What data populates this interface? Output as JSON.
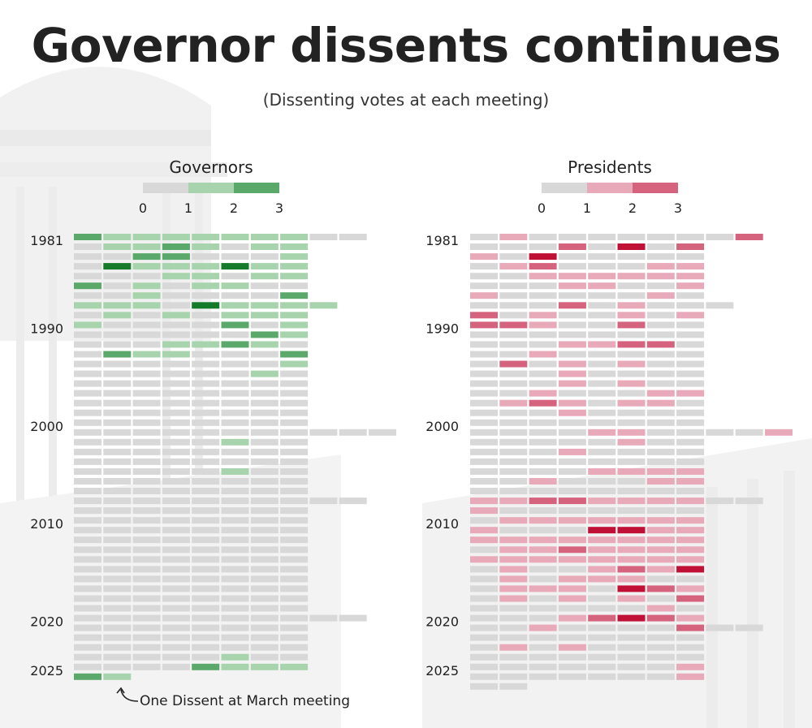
{
  "title": "Governor dissents continues",
  "subtitle": "(Dissenting votes at each meeting)",
  "annotation": "One Dissent at March meeting",
  "colors": {
    "empty": "#d8d8d8",
    "governors": [
      "#d8d8d8",
      "#a8d4ad",
      "#5aa86a",
      "#157a2a"
    ],
    "presidents": [
      "#d8d8d8",
      "#e8a9b8",
      "#d6637e",
      "#c01035"
    ]
  },
  "chart_data": [
    {
      "type": "heatmap",
      "title": "Governors",
      "legend": {
        "labels": [
          "0",
          "1",
          "2",
          "3"
        ],
        "position": "top"
      },
      "year_labels": [
        {
          "year": "1981",
          "row": 0
        },
        {
          "year": "1990",
          "row": 9
        },
        {
          "year": "2000",
          "row": 19
        },
        {
          "year": "2010",
          "row": 29
        },
        {
          "year": "2020",
          "row": 39
        },
        {
          "year": "2025",
          "row": 44
        }
      ],
      "rows": [
        [
          2,
          1,
          1,
          1,
          1,
          1,
          1,
          1,
          0,
          0
        ],
        [
          0,
          1,
          1,
          2,
          1,
          0,
          1,
          1
        ],
        [
          0,
          0,
          2,
          2,
          0,
          0,
          0,
          1
        ],
        [
          0,
          3,
          1,
          1,
          1,
          3,
          1,
          1
        ],
        [
          0,
          0,
          0,
          1,
          1,
          0,
          1,
          1
        ],
        [
          2,
          0,
          1,
          0,
          1,
          1,
          0,
          0
        ],
        [
          0,
          0,
          1,
          0,
          0,
          0,
          0,
          2
        ],
        [
          1,
          1,
          1,
          0,
          3,
          1,
          1,
          1,
          1
        ],
        [
          0,
          1,
          0,
          1,
          0,
          1,
          1,
          1
        ],
        [
          1,
          0,
          0,
          0,
          0,
          2,
          0,
          1
        ],
        [
          0,
          0,
          0,
          0,
          0,
          0,
          2,
          1
        ],
        [
          0,
          0,
          0,
          1,
          1,
          2,
          1,
          0
        ],
        [
          0,
          2,
          1,
          1,
          0,
          0,
          0,
          2
        ],
        [
          0,
          0,
          0,
          0,
          0,
          0,
          0,
          1
        ],
        [
          0,
          0,
          0,
          0,
          0,
          0,
          1,
          0
        ],
        [
          0,
          0,
          0,
          0,
          0,
          0,
          0,
          0
        ],
        [
          0,
          0,
          0,
          0,
          0,
          0,
          0,
          0
        ],
        [
          0,
          0,
          0,
          0,
          0,
          0,
          0,
          0
        ],
        [
          0,
          0,
          0,
          0,
          0,
          0,
          0,
          0
        ],
        [
          0,
          0,
          0,
          0,
          0,
          0,
          0,
          0
        ],
        [
          0,
          0,
          0,
          0,
          0,
          0,
          0,
          0,
          0,
          0,
          0
        ],
        [
          0,
          0,
          0,
          0,
          0,
          1,
          0,
          0
        ],
        [
          0,
          0,
          0,
          0,
          0,
          0,
          0,
          0
        ],
        [
          0,
          0,
          0,
          0,
          0,
          0,
          0,
          0
        ],
        [
          0,
          0,
          0,
          0,
          0,
          1,
          0,
          0
        ],
        [
          0,
          0,
          0,
          0,
          0,
          0,
          0,
          0
        ],
        [
          0,
          0,
          0,
          0,
          0,
          0,
          0,
          0
        ],
        [
          0,
          0,
          0,
          0,
          0,
          0,
          0,
          0,
          0,
          0
        ],
        [
          0,
          0,
          0,
          0,
          0,
          0,
          0,
          0
        ],
        [
          0,
          0,
          0,
          0,
          0,
          0,
          0,
          0
        ],
        [
          0,
          0,
          0,
          0,
          0,
          0,
          0,
          0
        ],
        [
          0,
          0,
          0,
          0,
          0,
          0,
          0,
          0
        ],
        [
          0,
          0,
          0,
          0,
          0,
          0,
          0,
          0
        ],
        [
          0,
          0,
          0,
          0,
          0,
          0,
          0,
          0
        ],
        [
          0,
          0,
          0,
          0,
          0,
          0,
          0,
          0
        ],
        [
          0,
          0,
          0,
          0,
          0,
          0,
          0,
          0
        ],
        [
          0,
          0,
          0,
          0,
          0,
          0,
          0,
          0
        ],
        [
          0,
          0,
          0,
          0,
          0,
          0,
          0,
          0
        ],
        [
          0,
          0,
          0,
          0,
          0,
          0,
          0,
          0
        ],
        [
          0,
          0,
          0,
          0,
          0,
          0,
          0,
          0,
          0,
          0
        ],
        [
          0,
          0,
          0,
          0,
          0,
          0,
          0,
          0
        ],
        [
          0,
          0,
          0,
          0,
          0,
          0,
          0,
          0
        ],
        [
          0,
          0,
          0,
          0,
          0,
          0,
          0,
          0
        ],
        [
          0,
          0,
          0,
          0,
          0,
          1,
          0,
          0
        ],
        [
          0,
          0,
          0,
          0,
          2,
          1,
          1,
          1
        ],
        [
          2,
          1
        ]
      ]
    },
    {
      "type": "heatmap",
      "title": "Presidents",
      "legend": {
        "labels": [
          "0",
          "1",
          "2",
          "3"
        ],
        "position": "top"
      },
      "year_labels": [
        {
          "year": "1981",
          "row": 0
        },
        {
          "year": "1990",
          "row": 9
        },
        {
          "year": "2000",
          "row": 19
        },
        {
          "year": "2010",
          "row": 29
        },
        {
          "year": "2020",
          "row": 39
        },
        {
          "year": "2025",
          "row": 44
        }
      ],
      "rows": [
        [
          0,
          1,
          0,
          0,
          0,
          0,
          0,
          0,
          0,
          2
        ],
        [
          0,
          0,
          0,
          2,
          0,
          3,
          0,
          2
        ],
        [
          1,
          0,
          3,
          0,
          0,
          0,
          0,
          0
        ],
        [
          0,
          1,
          2,
          0,
          0,
          0,
          1,
          1
        ],
        [
          0,
          0,
          1,
          1,
          1,
          1,
          1,
          1
        ],
        [
          0,
          0,
          0,
          1,
          1,
          0,
          0,
          1
        ],
        [
          1,
          0,
          0,
          0,
          0,
          0,
          1,
          0
        ],
        [
          0,
          0,
          0,
          2,
          0,
          1,
          0,
          0,
          0
        ],
        [
          2,
          0,
          1,
          0,
          0,
          1,
          0,
          1
        ],
        [
          2,
          2,
          1,
          0,
          0,
          2,
          0,
          0
        ],
        [
          0,
          0,
          0,
          0,
          0,
          0,
          0,
          0
        ],
        [
          0,
          0,
          0,
          1,
          1,
          2,
          2,
          0
        ],
        [
          0,
          0,
          1,
          0,
          0,
          0,
          0,
          0
        ],
        [
          0,
          2,
          0,
          1,
          0,
          1,
          0,
          0
        ],
        [
          0,
          0,
          0,
          1,
          0,
          0,
          0,
          0
        ],
        [
          0,
          0,
          0,
          1,
          0,
          1,
          0,
          0
        ],
        [
          0,
          0,
          1,
          0,
          0,
          0,
          1,
          1
        ],
        [
          0,
          1,
          2,
          1,
          0,
          1,
          1,
          0
        ],
        [
          0,
          0,
          0,
          1,
          0,
          0,
          0,
          0
        ],
        [
          0,
          0,
          0,
          0,
          0,
          0,
          0,
          0
        ],
        [
          0,
          0,
          0,
          0,
          1,
          1,
          0,
          0,
          0,
          0,
          1
        ],
        [
          0,
          0,
          0,
          0,
          0,
          1,
          0,
          0
        ],
        [
          0,
          0,
          0,
          1,
          0,
          0,
          0,
          0
        ],
        [
          0,
          0,
          0,
          0,
          0,
          0,
          0,
          0
        ],
        [
          0,
          0,
          0,
          0,
          1,
          1,
          1,
          1
        ],
        [
          0,
          0,
          1,
          0,
          0,
          0,
          1,
          1
        ],
        [
          0,
          0,
          0,
          0,
          0,
          0,
          0,
          0
        ],
        [
          1,
          1,
          2,
          2,
          1,
          1,
          1,
          1,
          0,
          0
        ],
        [
          1,
          0,
          0,
          0,
          0,
          0,
          0,
          0
        ],
        [
          0,
          1,
          1,
          1,
          1,
          1,
          1,
          1
        ],
        [
          1,
          0,
          0,
          0,
          3,
          3,
          1,
          1
        ],
        [
          1,
          1,
          1,
          1,
          1,
          1,
          1,
          1
        ],
        [
          0,
          1,
          1,
          2,
          1,
          1,
          1,
          1
        ],
        [
          1,
          1,
          1,
          1,
          1,
          1,
          1,
          1
        ],
        [
          0,
          1,
          0,
          0,
          1,
          2,
          1,
          3
        ],
        [
          0,
          1,
          0,
          1,
          1,
          1,
          0,
          0
        ],
        [
          0,
          1,
          1,
          1,
          0,
          3,
          2,
          1
        ],
        [
          0,
          1,
          0,
          1,
          0,
          1,
          0,
          2
        ],
        [
          0,
          0,
          0,
          0,
          0,
          0,
          1,
          0
        ],
        [
          0,
          0,
          0,
          1,
          2,
          3,
          2,
          1
        ],
        [
          0,
          0,
          1,
          0,
          0,
          0,
          0,
          2,
          0,
          0
        ],
        [
          0,
          0,
          0,
          0,
          0,
          0,
          0,
          0
        ],
        [
          0,
          1,
          0,
          1,
          0,
          0,
          0,
          0
        ],
        [
          0,
          0,
          0,
          0,
          0,
          0,
          0,
          0
        ],
        [
          0,
          0,
          0,
          0,
          0,
          0,
          0,
          1
        ],
        [
          0,
          0,
          0,
          0,
          0,
          0,
          0,
          1
        ],
        [
          0,
          0
        ]
      ]
    }
  ]
}
